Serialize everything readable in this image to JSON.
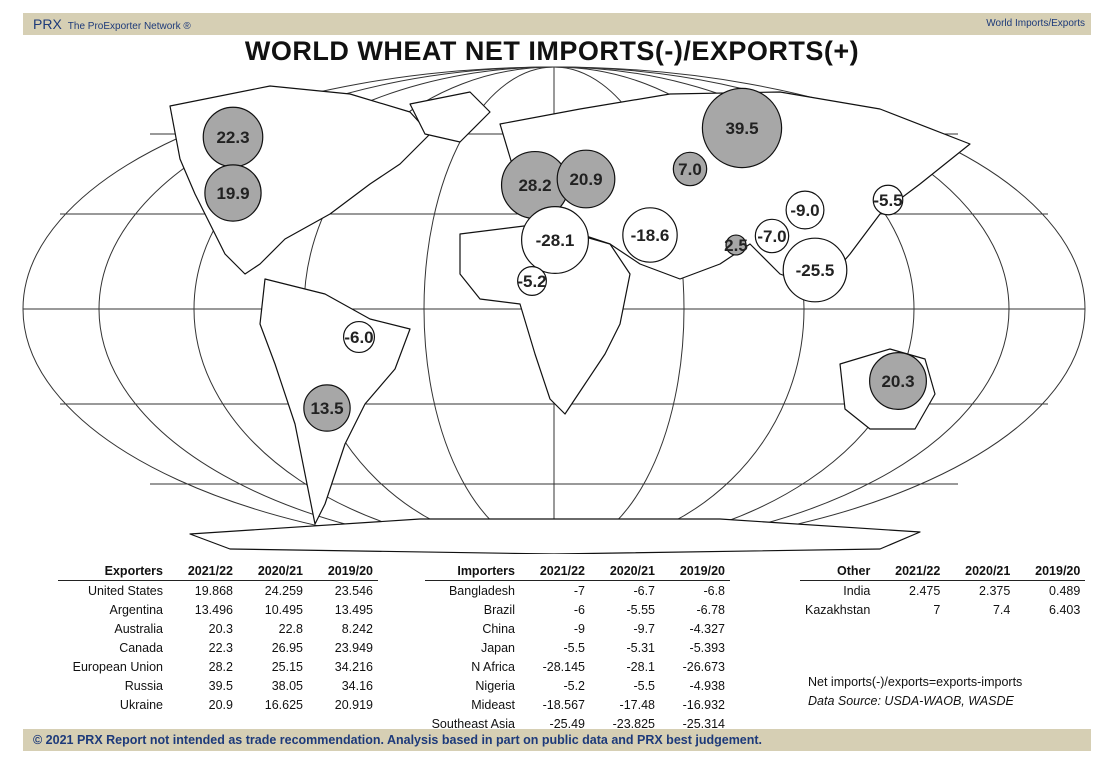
{
  "header": {
    "brand": "PRX",
    "network": "The ProExporter Network ®",
    "section": "World Imports/Exports"
  },
  "title": "WORLD WHEAT NET IMPORTS(-)/EXPORTS(+)",
  "colors": {
    "exporter_fill": "#a7a7a7",
    "importer_fill": "#ffffff",
    "bar": "#d6cfb4",
    "brand_text": "#1d3a7a"
  },
  "chart_data": {
    "type": "bubble-map",
    "title": "WORLD WHEAT NET IMPORTS(-)/EXPORTS(+)",
    "bubbles": [
      {
        "label": "22.3",
        "value": 22.3,
        "region": "Canada"
      },
      {
        "label": "19.9",
        "value": 19.9,
        "region": "United States"
      },
      {
        "label": "28.2",
        "value": 28.2,
        "region": "European Union"
      },
      {
        "label": "20.9",
        "value": 20.9,
        "region": "Ukraine"
      },
      {
        "label": "7.0",
        "value": 7.0,
        "region": "Kazakhstan"
      },
      {
        "label": "39.5",
        "value": 39.5,
        "region": "Russia"
      },
      {
        "label": "-28.1",
        "value": -28.1,
        "region": "N Africa"
      },
      {
        "label": "-18.6",
        "value": -18.6,
        "region": "Mideast"
      },
      {
        "label": "2.5",
        "value": 2.5,
        "region": "India"
      },
      {
        "label": "-7.0",
        "value": -7.0,
        "region": "Bangladesh"
      },
      {
        "label": "-9.0",
        "value": -9.0,
        "region": "China"
      },
      {
        "label": "-5.5",
        "value": -5.5,
        "region": "Japan"
      },
      {
        "label": "-25.5",
        "value": -25.5,
        "region": "Southeast Asia"
      },
      {
        "label": "-5.2",
        "value": -5.2,
        "region": "Nigeria"
      },
      {
        "label": "-6.0",
        "value": -6.0,
        "region": "Brazil"
      },
      {
        "label": "13.5",
        "value": 13.5,
        "region": "Argentina"
      },
      {
        "label": "20.3",
        "value": 20.3,
        "region": "Australia"
      }
    ]
  },
  "exporters": {
    "headers": [
      "Exporters",
      "2021/22",
      "2020/21",
      "2019/20"
    ],
    "rows": [
      [
        "United States",
        "19.868",
        "24.259",
        "23.546"
      ],
      [
        "Argentina",
        "13.496",
        "10.495",
        "13.495"
      ],
      [
        "Australia",
        "20.3",
        "22.8",
        "8.242"
      ],
      [
        "Canada",
        "22.3",
        "26.95",
        "23.949"
      ],
      [
        "European Union",
        "28.2",
        "25.15",
        "34.216"
      ],
      [
        "Russia",
        "39.5",
        "38.05",
        "34.16"
      ],
      [
        "Ukraine",
        "20.9",
        "16.625",
        "20.919"
      ]
    ]
  },
  "importers": {
    "headers": [
      "Importers",
      "2021/22",
      "2020/21",
      "2019/20"
    ],
    "rows": [
      [
        "Bangladesh",
        "-7",
        "-6.7",
        "-6.8"
      ],
      [
        "Brazil",
        "-6",
        "-5.55",
        "-6.78"
      ],
      [
        "China",
        "-9",
        "-9.7",
        "-4.327"
      ],
      [
        "Japan",
        "-5.5",
        "-5.31",
        "-5.393"
      ],
      [
        "N Africa",
        "-28.145",
        "-28.1",
        "-26.673"
      ],
      [
        "Nigeria",
        "-5.2",
        "-5.5",
        "-4.938"
      ],
      [
        "Mideast",
        "-18.567",
        "-17.48",
        "-16.932"
      ],
      [
        "Southeast Asia",
        "-25.49",
        "-23.825",
        "-25.314"
      ]
    ]
  },
  "other": {
    "headers": [
      "Other",
      "2021/22",
      "2020/21",
      "2019/20"
    ],
    "rows": [
      [
        "India",
        "2.475",
        "2.375",
        "0.489"
      ],
      [
        "Kazakhstan",
        "7",
        "7.4",
        "6.403"
      ]
    ]
  },
  "notes": {
    "definition": "Net imports(-)/exports=exports-imports",
    "source": "Data Source: USDA-WAOB, WASDE"
  },
  "footer": "© 2021 PRX  Report not intended as trade recommendation. Analysis based in part on public data and PRX best judgement."
}
